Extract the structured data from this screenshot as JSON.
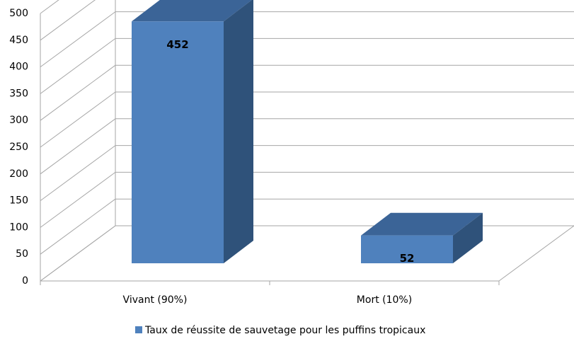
{
  "chart_data": {
    "type": "bar",
    "categories": [
      "Vivant (90%)",
      "Mort (10%)"
    ],
    "series": [
      {
        "name": "Taux de réussite de sauvetage pour les puffins tropicaux",
        "color": "#4f81bd",
        "values": [
          452,
          52
        ]
      }
    ],
    "ylim": [
      0,
      500
    ],
    "yticks": [
      0,
      50,
      100,
      150,
      200,
      250,
      300,
      350,
      400,
      450,
      500
    ],
    "grid": true
  }
}
